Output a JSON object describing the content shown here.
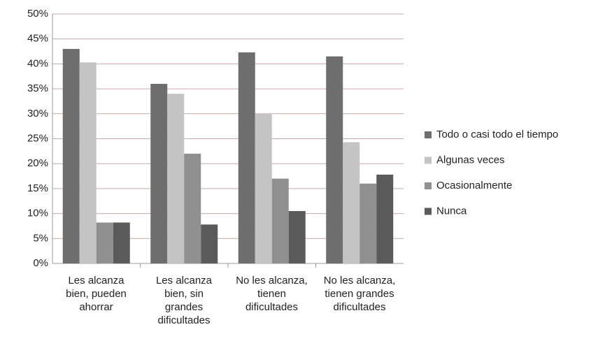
{
  "chart_data": {
    "type": "bar",
    "categories": [
      "Les alcanza\nbien, pueden\nahorrar",
      "Les alcanza\nbien, sin\ngrandes\ndificultades",
      "No les alcanza,\ntienen\ndificultades",
      "No les alcanza,\ntienen grandes\ndificultades"
    ],
    "series": [
      {
        "name": "Todo o casi todo el tiempo",
        "color": "#6e6e6e",
        "values": [
          43,
          36,
          42.3,
          41.5
        ]
      },
      {
        "name": "Algunas veces",
        "color": "#c4c4c4",
        "values": [
          40.3,
          34,
          30,
          24.3
        ]
      },
      {
        "name": "Ocasionalmente",
        "color": "#909090",
        "values": [
          8.2,
          22,
          17,
          16
        ]
      },
      {
        "name": "Nunca",
        "color": "#5a5a5a",
        "values": [
          8.2,
          7.8,
          10.5,
          17.8
        ]
      }
    ],
    "ylim": [
      0,
      50
    ],
    "yticks": [
      {
        "value": 0,
        "label": "0%"
      },
      {
        "value": 5,
        "label": "5%"
      },
      {
        "value": 10,
        "label": "10%"
      },
      {
        "value": 15,
        "label": "15%"
      },
      {
        "value": 20,
        "label": "20%"
      },
      {
        "value": 25,
        "label": "25%"
      },
      {
        "value": 30,
        "label": "30%"
      },
      {
        "value": 35,
        "label": "35%"
      },
      {
        "value": 40,
        "label": "40%"
      },
      {
        "value": 45,
        "label": "45%"
      },
      {
        "value": 50,
        "label": "50%"
      }
    ],
    "grid": true,
    "legend": "right"
  }
}
